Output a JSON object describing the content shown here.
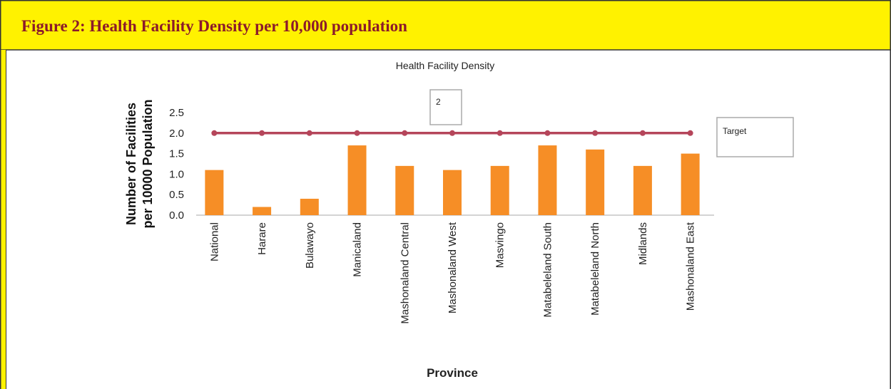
{
  "header": {
    "title": "Figure 2: Health Facility Density per 10,000 population"
  },
  "chart_data": {
    "type": "bar",
    "title": "Health Facility Density",
    "xlabel": "Province",
    "ylabel": [
      "Number of Facilities",
      "per 10000 Population"
    ],
    "categories": [
      "National",
      "Harare",
      "Bulawayo",
      "Manicaland",
      "Mashonaland Central",
      "Mashonaland West",
      "Masvingo",
      "Matabeleland South",
      "Matabeleland North",
      "Midlands",
      "Mashonaland East"
    ],
    "values": [
      1.1,
      0.2,
      0.4,
      1.7,
      1.2,
      1.1,
      1.2,
      1.7,
      1.6,
      1.2,
      1.5
    ],
    "color": "#f68e26",
    "target": {
      "name": "Target",
      "color": "#b5455a",
      "values": [
        2,
        2,
        2,
        2,
        2,
        2,
        2,
        2,
        2,
        2,
        2
      ]
    },
    "ylim": [
      0,
      2.5
    ],
    "yticks": [
      {
        "value": 0,
        "label": "0.0"
      },
      {
        "value": 0.5,
        "label": "0.5"
      },
      {
        "value": 1,
        "label": "1.0"
      },
      {
        "value": 1.5,
        "label": "1.5"
      },
      {
        "value": 2,
        "label": "2.0"
      },
      {
        "value": 2.5,
        "label": "2.5"
      }
    ],
    "grid": false
  }
}
